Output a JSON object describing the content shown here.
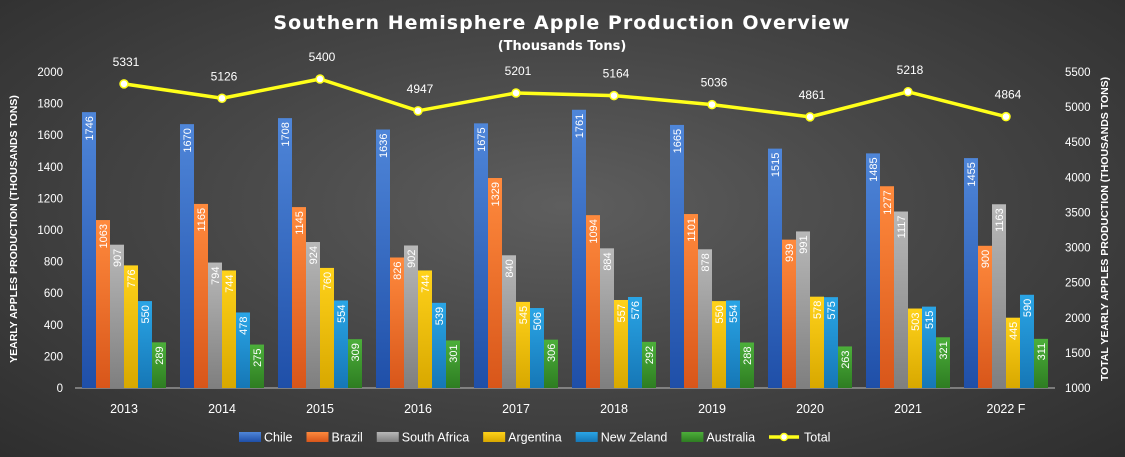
{
  "chart_data": {
    "type": "bar",
    "title": "Southern Hemisphere Apple Production Overview",
    "subtitle": "(Thousands Tons)",
    "categories": [
      "2013",
      "2014",
      "2015",
      "2016",
      "2017",
      "2018",
      "2019",
      "2020",
      "2021",
      "2022 F"
    ],
    "ylabel": "YEARLY APPLES PRODUCTION (THOUSANDS TONS)",
    "y2label": "TOTAL YEARLY APPLES PRODUCTION (THOUSANDS TONS)",
    "ylim": [
      0,
      2000
    ],
    "y2lim": [
      1000,
      5500
    ],
    "yticks": [
      "0",
      "200",
      "400",
      "600",
      "800",
      "1000",
      "1200",
      "1400",
      "1600",
      "1800",
      "2000"
    ],
    "y2ticks": [
      "1000",
      "1500",
      "2000",
      "2500",
      "3000",
      "3500",
      "4000",
      "4500",
      "5000",
      "5500"
    ],
    "series": [
      {
        "name": "Chile",
        "color": "#4f86d9",
        "colorDark": "#1f4fa8",
        "values": [
          1746,
          1670,
          1708,
          1636,
          1675,
          1761,
          1665,
          1515,
          1485,
          1455
        ]
      },
      {
        "name": "Brazil",
        "color": "#ff8a3d",
        "colorDark": "#d8561a",
        "values": [
          1063,
          1165,
          1145,
          826,
          1329,
          1094,
          1101,
          939,
          1277,
          900
        ]
      },
      {
        "name": "South Africa",
        "color": "#b8b8b8",
        "colorDark": "#7f7f7f",
        "values": [
          907,
          794,
          924,
          902,
          840,
          884,
          878,
          991,
          1117,
          1163
        ]
      },
      {
        "name": "Argentina",
        "color": "#ffd21a",
        "colorDark": "#d8a800",
        "values": [
          776,
          744,
          760,
          744,
          545,
          557,
          550,
          578,
          503,
          445
        ]
      },
      {
        "name": "New Zeland",
        "color": "#2aa5e6",
        "colorDark": "#1677b6",
        "values": [
          550,
          478,
          554,
          539,
          506,
          576,
          554,
          575,
          515,
          590
        ]
      },
      {
        "name": "Australia",
        "color": "#4caf3a",
        "colorDark": "#2e7d22",
        "values": [
          289,
          275,
          309,
          301,
          306,
          292,
          288,
          263,
          321,
          311
        ]
      }
    ],
    "line": {
      "name": "Total",
      "color": "#ffff1a",
      "values": [
        5331,
        5126,
        5400,
        4947,
        5201,
        5164,
        5036,
        4861,
        5218,
        4864
      ]
    },
    "grid": false,
    "legend": "bottom"
  }
}
